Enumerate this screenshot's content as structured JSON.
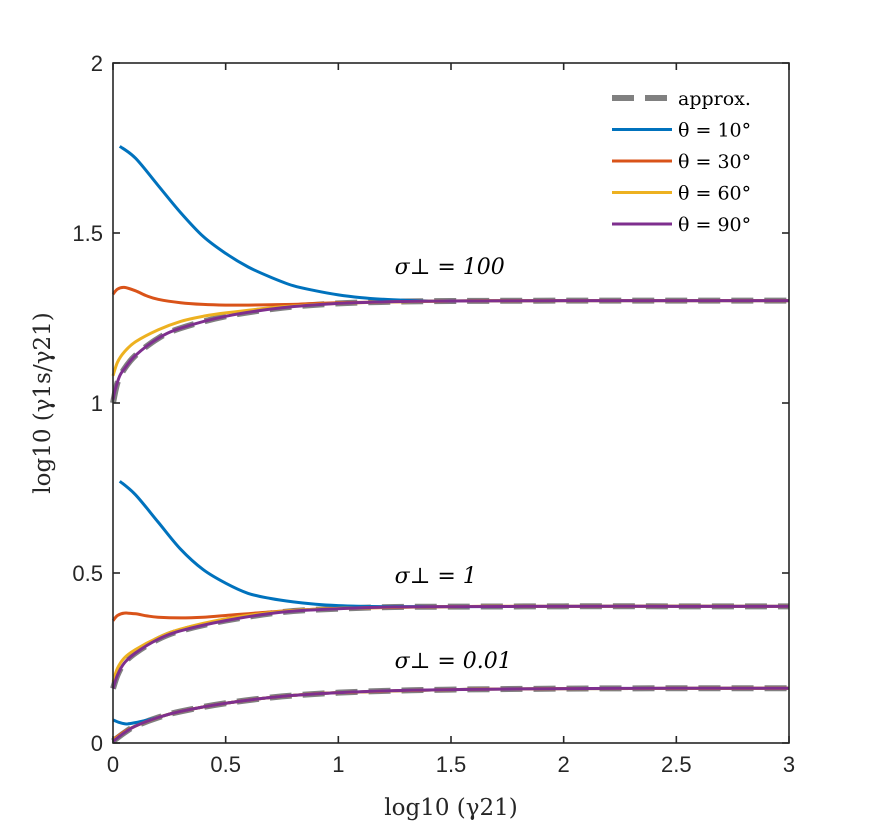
{
  "chart_data": {
    "type": "line",
    "title": "",
    "xlabel": "log10 (γ21)",
    "ylabel": "log10 (γ1s/γ21)",
    "xlim": [
      0,
      3
    ],
    "ylim": [
      0,
      2
    ],
    "xticks": [
      0,
      0.5,
      1,
      1.5,
      2,
      2.5,
      3
    ],
    "xtick_labels": [
      "0",
      "0.5",
      "1",
      "1.5",
      "2",
      "2.5",
      "3"
    ],
    "yticks": [
      0,
      0.5,
      1,
      1.5,
      2
    ],
    "ytick_labels": [
      "0",
      "0.5",
      "1",
      "1.5",
      "2"
    ],
    "grid": false,
    "legend_position": "top-right",
    "legend": [
      {
        "key": "approx",
        "label": "approx.",
        "color": "#808080",
        "dashed": true
      },
      {
        "key": "t10",
        "label": "θ = 10°",
        "color": "#0072BD",
        "dashed": false
      },
      {
        "key": "t30",
        "label": "θ = 30°",
        "color": "#D95319",
        "dashed": false
      },
      {
        "key": "t60",
        "label": "θ = 60°",
        "color": "#EDB120",
        "dashed": false
      },
      {
        "key": "t90",
        "label": "θ = 90°",
        "color": "#7E2F8E",
        "dashed": false
      }
    ],
    "annotations": [
      {
        "text": "σ⊥ = 100",
        "x": 1.25,
        "y": 1.38
      },
      {
        "text": "σ⊥ = 1",
        "x": 1.25,
        "y": 0.47
      },
      {
        "text": "σ⊥ = 0.01",
        "x": 1.25,
        "y": 0.22
      }
    ],
    "series": [
      {
        "group": "σ⊥ = 100",
        "name": "approx.",
        "key": "approx",
        "x": [
          0,
          0.02,
          0.05,
          0.1,
          0.2,
          0.3,
          0.5,
          0.75,
          1,
          1.25,
          1.5,
          2,
          2.5,
          3
        ],
        "y": [
          1.0,
          1.06,
          1.1,
          1.14,
          1.19,
          1.22,
          1.255,
          1.28,
          1.293,
          1.298,
          1.3,
          1.301,
          1.301,
          1.301
        ]
      },
      {
        "group": "σ⊥ = 100",
        "name": "θ = 10°",
        "key": "t10",
        "x": [
          0.03,
          0.1,
          0.2,
          0.3,
          0.4,
          0.5,
          0.6,
          0.7,
          0.8,
          0.9,
          1.0,
          1.1,
          1.2,
          1.3,
          1.4,
          1.5,
          2,
          2.5,
          3
        ],
        "y": [
          1.755,
          1.72,
          1.64,
          1.56,
          1.49,
          1.44,
          1.4,
          1.37,
          1.345,
          1.33,
          1.318,
          1.31,
          1.305,
          1.302,
          1.3,
          1.3,
          1.301,
          1.301,
          1.301
        ]
      },
      {
        "group": "σ⊥ = 100",
        "name": "θ = 30°",
        "key": "t30",
        "x": [
          0,
          0.02,
          0.05,
          0.1,
          0.15,
          0.2,
          0.3,
          0.4,
          0.5,
          0.6,
          0.7,
          0.8,
          1.0,
          1.5,
          2,
          3
        ],
        "y": [
          1.32,
          1.335,
          1.34,
          1.33,
          1.315,
          1.305,
          1.295,
          1.29,
          1.288,
          1.288,
          1.289,
          1.29,
          1.295,
          1.3,
          1.301,
          1.301
        ]
      },
      {
        "group": "σ⊥ = 100",
        "name": "θ = 60°",
        "key": "t60",
        "x": [
          0,
          0.02,
          0.05,
          0.1,
          0.2,
          0.3,
          0.4,
          0.5,
          0.75,
          1,
          1.5,
          2,
          3
        ],
        "y": [
          1.08,
          1.12,
          1.15,
          1.18,
          1.215,
          1.24,
          1.255,
          1.265,
          1.283,
          1.293,
          1.3,
          1.301,
          1.301
        ]
      },
      {
        "group": "σ⊥ = 100",
        "name": "θ = 90°",
        "key": "t90",
        "x": [
          0,
          0.01,
          0.03,
          0.05,
          0.1,
          0.2,
          0.3,
          0.5,
          0.75,
          1,
          1.25,
          1.5,
          2,
          2.5,
          3
        ],
        "y": [
          1.01,
          1.04,
          1.08,
          1.1,
          1.14,
          1.19,
          1.22,
          1.255,
          1.28,
          1.293,
          1.298,
          1.3,
          1.301,
          1.301,
          1.301
        ]
      },
      {
        "group": "σ⊥ = 1",
        "name": "approx.",
        "key": "approx",
        "x": [
          0,
          0.02,
          0.05,
          0.1,
          0.2,
          0.3,
          0.5,
          0.75,
          1,
          1.25,
          1.5,
          2,
          2.5,
          3
        ],
        "y": [
          0.16,
          0.2,
          0.235,
          0.265,
          0.305,
          0.33,
          0.36,
          0.385,
          0.395,
          0.4,
          0.401,
          0.402,
          0.402,
          0.402
        ]
      },
      {
        "group": "σ⊥ = 1",
        "name": "θ = 10°",
        "key": "t10",
        "x": [
          0.03,
          0.1,
          0.2,
          0.3,
          0.4,
          0.5,
          0.6,
          0.7,
          0.8,
          0.9,
          1.0,
          1.1,
          1.2,
          1.3,
          1.5,
          2,
          3
        ],
        "y": [
          0.77,
          0.73,
          0.65,
          0.57,
          0.51,
          0.47,
          0.44,
          0.425,
          0.415,
          0.408,
          0.404,
          0.402,
          0.401,
          0.401,
          0.401,
          0.402,
          0.402
        ]
      },
      {
        "group": "σ⊥ = 1",
        "name": "θ = 30°",
        "key": "t30",
        "x": [
          0,
          0.02,
          0.05,
          0.1,
          0.15,
          0.2,
          0.3,
          0.4,
          0.5,
          0.75,
          1,
          1.5,
          2,
          3
        ],
        "y": [
          0.36,
          0.375,
          0.382,
          0.38,
          0.374,
          0.37,
          0.368,
          0.37,
          0.375,
          0.388,
          0.396,
          0.401,
          0.402,
          0.402
        ]
      },
      {
        "group": "σ⊥ = 1",
        "name": "θ = 60°",
        "key": "t60",
        "x": [
          0,
          0.02,
          0.05,
          0.1,
          0.2,
          0.3,
          0.5,
          0.75,
          1,
          1.5,
          2,
          3
        ],
        "y": [
          0.18,
          0.22,
          0.25,
          0.275,
          0.31,
          0.335,
          0.365,
          0.387,
          0.396,
          0.401,
          0.402,
          0.402
        ]
      },
      {
        "group": "σ⊥ = 1",
        "name": "θ = 90°",
        "key": "t90",
        "x": [
          0,
          0.02,
          0.05,
          0.1,
          0.2,
          0.3,
          0.5,
          0.75,
          1,
          1.25,
          1.5,
          2,
          2.5,
          3
        ],
        "y": [
          0.16,
          0.2,
          0.235,
          0.265,
          0.305,
          0.33,
          0.36,
          0.385,
          0.395,
          0.4,
          0.401,
          0.402,
          0.402,
          0.402
        ]
      },
      {
        "group": "σ⊥ = 0.01",
        "name": "approx.",
        "key": "approx",
        "x": [
          0,
          0.05,
          0.1,
          0.2,
          0.3,
          0.5,
          0.75,
          1,
          1.25,
          1.5,
          2,
          2.5,
          3
        ],
        "y": [
          0.005,
          0.03,
          0.05,
          0.075,
          0.093,
          0.117,
          0.137,
          0.148,
          0.154,
          0.157,
          0.16,
          0.161,
          0.161
        ]
      },
      {
        "group": "σ⊥ = 0.01",
        "name": "θ = 10°",
        "key": "t10",
        "x": [
          0,
          0.03,
          0.06,
          0.1,
          0.15,
          0.2,
          0.3,
          0.5,
          0.75,
          1,
          1.5,
          2,
          3
        ],
        "y": [
          0.068,
          0.06,
          0.056,
          0.06,
          0.067,
          0.075,
          0.093,
          0.117,
          0.137,
          0.148,
          0.157,
          0.16,
          0.161
        ]
      },
      {
        "group": "σ⊥ = 0.01",
        "name": "θ = 30°",
        "key": "t30",
        "x": [
          0,
          0.05,
          0.1,
          0.2,
          0.3,
          0.5,
          0.75,
          1,
          1.5,
          2,
          3
        ],
        "y": [
          0.01,
          0.033,
          0.05,
          0.075,
          0.093,
          0.117,
          0.137,
          0.148,
          0.157,
          0.16,
          0.161
        ]
      },
      {
        "group": "σ⊥ = 0.01",
        "name": "θ = 60°",
        "key": "t60",
        "x": [
          0,
          0.05,
          0.1,
          0.2,
          0.3,
          0.5,
          0.75,
          1,
          1.5,
          2,
          3
        ],
        "y": [
          0.008,
          0.031,
          0.05,
          0.075,
          0.093,
          0.117,
          0.137,
          0.148,
          0.157,
          0.16,
          0.161
        ]
      },
      {
        "group": "σ⊥ = 0.01",
        "name": "θ = 90°",
        "key": "t90",
        "x": [
          0,
          0.05,
          0.1,
          0.2,
          0.3,
          0.5,
          0.75,
          1,
          1.25,
          1.5,
          2,
          2.5,
          3
        ],
        "y": [
          0.005,
          0.03,
          0.05,
          0.075,
          0.093,
          0.117,
          0.137,
          0.148,
          0.154,
          0.157,
          0.16,
          0.161,
          0.161
        ]
      }
    ]
  }
}
